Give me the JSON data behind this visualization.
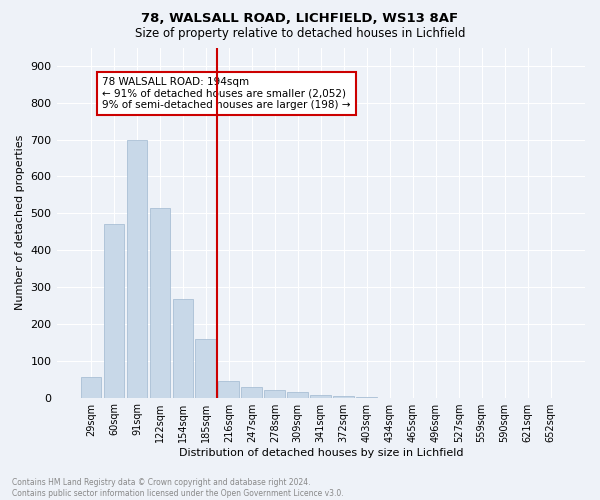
{
  "title1": "78, WALSALL ROAD, LICHFIELD, WS13 8AF",
  "title2": "Size of property relative to detached houses in Lichfield",
  "xlabel": "Distribution of detached houses by size in Lichfield",
  "ylabel": "Number of detached properties",
  "footer1": "Contains HM Land Registry data © Crown copyright and database right 2024.",
  "footer2": "Contains public sector information licensed under the Open Government Licence v3.0.",
  "categories": [
    "29sqm",
    "60sqm",
    "91sqm",
    "122sqm",
    "154sqm",
    "185sqm",
    "216sqm",
    "247sqm",
    "278sqm",
    "309sqm",
    "341sqm",
    "372sqm",
    "403sqm",
    "434sqm",
    "465sqm",
    "496sqm",
    "527sqm",
    "559sqm",
    "590sqm",
    "621sqm",
    "652sqm"
  ],
  "values": [
    57,
    470,
    700,
    515,
    268,
    160,
    45,
    30,
    20,
    15,
    7,
    3,
    1,
    0,
    0,
    0,
    0,
    0,
    0,
    0,
    0
  ],
  "bar_color": "#c8d8e8",
  "bar_edge_color": "#a0b8d0",
  "vline_x_index": 5.5,
  "vline_color": "#cc0000",
  "annotation_text": "78 WALSALL ROAD: 194sqm\n← 91% of detached houses are smaller (2,052)\n9% of semi-detached houses are larger (198) →",
  "annotation_box_color": "#ffffff",
  "annotation_box_edge": "#cc0000",
  "ylim": [
    0,
    950
  ],
  "yticks": [
    0,
    100,
    200,
    300,
    400,
    500,
    600,
    700,
    800,
    900
  ],
  "background_color": "#eef2f8",
  "grid_color": "#ffffff"
}
